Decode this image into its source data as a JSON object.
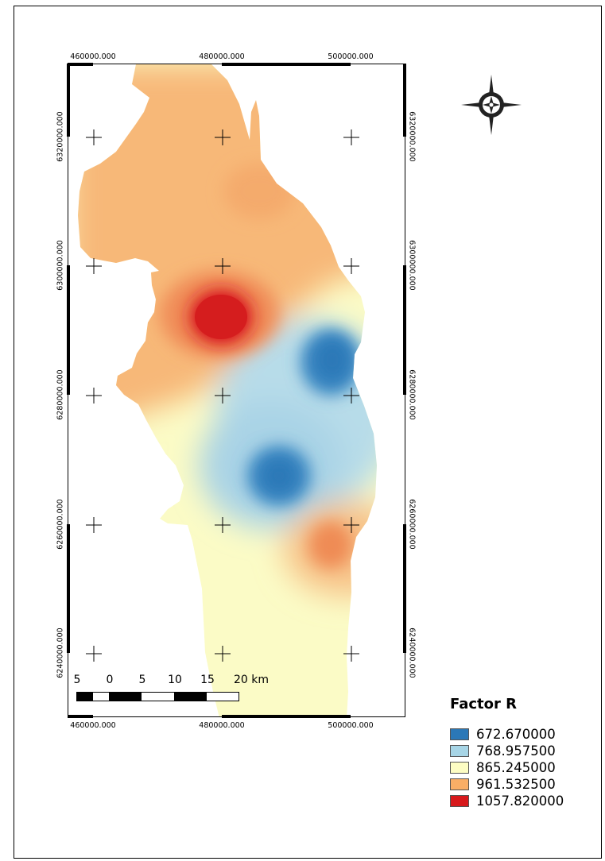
{
  "x_labels_top": [
    "460000.000",
    "480000.000",
    "500000.000"
  ],
  "x_labels_bottom": [
    "460000.000",
    "480000.000",
    "500000.000"
  ],
  "y_labels_left": [
    "6320000.000",
    "6300000.000",
    "6280000.000",
    "6260000.000",
    "6240000.000"
  ],
  "y_labels_right": [
    "6320000.000",
    "6300000.000",
    "6280000.000",
    "6260000.000",
    "6240000.000"
  ],
  "legend": {
    "title": "Factor R",
    "items": [
      {
        "label": "672.670000",
        "color": "#2b78b7"
      },
      {
        "label": "768.957500",
        "color": "#a7d5e6"
      },
      {
        "label": "865.245000",
        "color": "#fdfdc3"
      },
      {
        "label": "961.532500",
        "color": "#f9ae66"
      },
      {
        "label": "1057.820000",
        "color": "#d7191c"
      }
    ]
  },
  "scale_bar": {
    "labels": [
      "5",
      "0",
      "5",
      "10",
      "15",
      "20 km"
    ]
  },
  "north_arrow_icon": "compass-rose-icon"
}
